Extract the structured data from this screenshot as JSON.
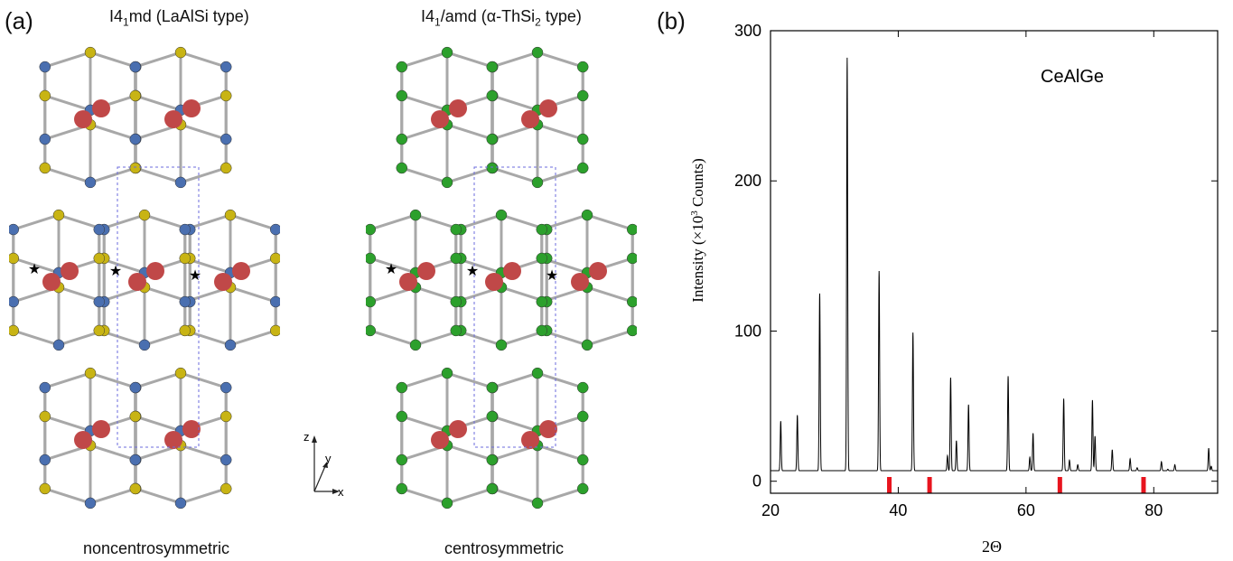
{
  "panel_a": {
    "label": "(a)",
    "left": {
      "title_prefix": "I4",
      "title_sub": "1",
      "title_rest": "md (LaAlSi type)",
      "caption": "noncentrosymmetric",
      "atom_colors": {
        "a": "#c8b414",
        "b": "#4a6fb0",
        "rare_earth": "#c04848"
      }
    },
    "right": {
      "title_prefix": "I4",
      "title_sub": "1",
      "title_mid": "/amd (α-ThSi",
      "title_sub2": "2",
      "title_rest": " type)",
      "caption": "centrosymmetric",
      "atom_colors": {
        "a": "#2ca02c",
        "rare_earth": "#c04848"
      }
    },
    "axes": {
      "z": "z",
      "y": "y",
      "x": "x"
    }
  },
  "panel_b": {
    "label": "(b)",
    "annotation": "CeAlGe",
    "ylabel": "Intensity (×10",
    "ylabel_sup": "3",
    "ylabel_tail": " Counts)",
    "xlabel": "2Θ"
  },
  "chart_data": {
    "type": "line",
    "title": "",
    "xlabel": "2Θ",
    "ylabel": "Intensity (×10³ Counts)",
    "xlim": [
      20,
      90
    ],
    "ylim": [
      -8,
      300
    ],
    "xticks": [
      20,
      40,
      60,
      80
    ],
    "yticks": [
      0,
      100,
      200,
      300
    ],
    "baseline": 7,
    "peaks": [
      {
        "x": 21.6,
        "y": 40
      },
      {
        "x": 24.2,
        "y": 44
      },
      {
        "x": 27.7,
        "y": 125
      },
      {
        "x": 32.0,
        "y": 282
      },
      {
        "x": 37.0,
        "y": 140
      },
      {
        "x": 42.3,
        "y": 99
      },
      {
        "x": 47.7,
        "y": 17
      },
      {
        "x": 48.2,
        "y": 69
      },
      {
        "x": 49.1,
        "y": 27
      },
      {
        "x": 51.0,
        "y": 51
      },
      {
        "x": 57.2,
        "y": 70
      },
      {
        "x": 60.6,
        "y": 16
      },
      {
        "x": 61.1,
        "y": 32
      },
      {
        "x": 65.9,
        "y": 55
      },
      {
        "x": 66.8,
        "y": 14
      },
      {
        "x": 68.1,
        "y": 11
      },
      {
        "x": 70.4,
        "y": 54
      },
      {
        "x": 70.8,
        "y": 30
      },
      {
        "x": 73.5,
        "y": 21
      },
      {
        "x": 76.3,
        "y": 15
      },
      {
        "x": 77.4,
        "y": 9
      },
      {
        "x": 81.2,
        "y": 13
      },
      {
        "x": 82.2,
        "y": 8
      },
      {
        "x": 83.3,
        "y": 11
      },
      {
        "x": 88.6,
        "y": 22
      },
      {
        "x": 89.0,
        "y": 10
      }
    ],
    "markers": {
      "color": "#e8141e",
      "x": [
        38.6,
        44.9,
        65.3,
        78.4
      ]
    }
  }
}
